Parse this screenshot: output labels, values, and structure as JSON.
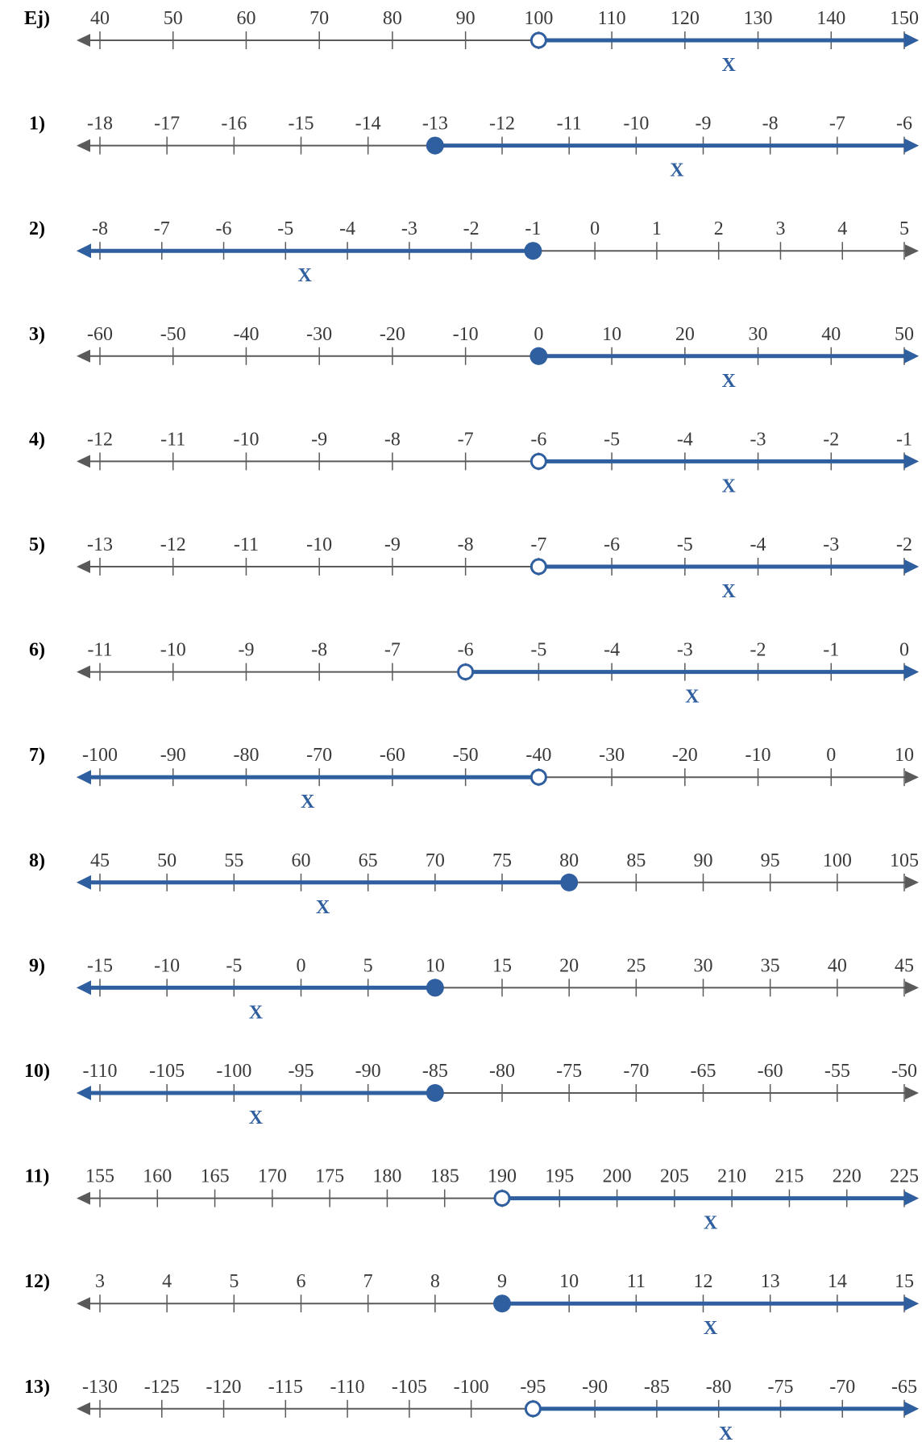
{
  "colors": {
    "axis": "#5a5a5a",
    "solution": "#2f5f9f",
    "text": "#3a3a3a"
  },
  "variable": "X",
  "problems": [
    {
      "label": "Ej)",
      "ticks": [
        "40",
        "50",
        "60",
        "70",
        "80",
        "90",
        "100",
        "110",
        "120",
        "130",
        "140",
        "150"
      ],
      "point": "100",
      "endpoint": "open",
      "direction": "right"
    },
    {
      "label": "1)",
      "ticks": [
        "-18",
        "-17",
        "-16",
        "-15",
        "-14",
        "-13",
        "-12",
        "-11",
        "-10",
        "-9",
        "-8",
        "-7",
        "-6"
      ],
      "point": "-13",
      "endpoint": "closed",
      "direction": "right"
    },
    {
      "label": "2)",
      "ticks": [
        "-8",
        "-7",
        "-6",
        "-5",
        "-4",
        "-3",
        "-2",
        "-1",
        "0",
        "1",
        "2",
        "3",
        "4",
        "5"
      ],
      "point": "-1",
      "endpoint": "closed",
      "direction": "left"
    },
    {
      "label": "3)",
      "ticks": [
        "-60",
        "-50",
        "-40",
        "-30",
        "-20",
        "-10",
        "0",
        "10",
        "20",
        "30",
        "40",
        "50"
      ],
      "point": "0",
      "endpoint": "closed",
      "direction": "right"
    },
    {
      "label": "4)",
      "ticks": [
        "-12",
        "-11",
        "-10",
        "-9",
        "-8",
        "-7",
        "-6",
        "-5",
        "-4",
        "-3",
        "-2",
        "-1"
      ],
      "point": "-6",
      "endpoint": "open",
      "direction": "right"
    },
    {
      "label": "5)",
      "ticks": [
        "-13",
        "-12",
        "-11",
        "-10",
        "-9",
        "-8",
        "-7",
        "-6",
        "-5",
        "-4",
        "-3",
        "-2"
      ],
      "point": "-7",
      "endpoint": "open",
      "direction": "right"
    },
    {
      "label": "6)",
      "ticks": [
        "-11",
        "-10",
        "-9",
        "-8",
        "-7",
        "-6",
        "-5",
        "-4",
        "-3",
        "-2",
        "-1",
        "0"
      ],
      "point": "-6",
      "endpoint": "open",
      "direction": "right"
    },
    {
      "label": "7)",
      "ticks": [
        "-100",
        "-90",
        "-80",
        "-70",
        "-60",
        "-50",
        "-40",
        "-30",
        "-20",
        "-10",
        "0",
        "10"
      ],
      "point": "-40",
      "endpoint": "open",
      "direction": "left"
    },
    {
      "label": "8)",
      "ticks": [
        "45",
        "50",
        "55",
        "60",
        "65",
        "70",
        "75",
        "80",
        "85",
        "90",
        "95",
        "100",
        "105"
      ],
      "point": "80",
      "endpoint": "closed",
      "direction": "left"
    },
    {
      "label": "9)",
      "ticks": [
        "-15",
        "-10",
        "-5",
        "0",
        "5",
        "10",
        "15",
        "20",
        "25",
        "30",
        "35",
        "40",
        "45"
      ],
      "point": "10",
      "endpoint": "closed",
      "direction": "left"
    },
    {
      "label": "10)",
      "ticks": [
        "-110",
        "-105",
        "-100",
        "-95",
        "-90",
        "-85",
        "-80",
        "-75",
        "-70",
        "-65",
        "-60",
        "-55",
        "-50"
      ],
      "point": "-85",
      "endpoint": "closed",
      "direction": "left"
    },
    {
      "label": "11)",
      "ticks": [
        "155",
        "160",
        "165",
        "170",
        "175",
        "180",
        "185",
        "190",
        "195",
        "200",
        "205",
        "210",
        "215",
        "220",
        "225"
      ],
      "point": "190",
      "endpoint": "open",
      "direction": "right"
    },
    {
      "label": "12)",
      "ticks": [
        "3",
        "4",
        "5",
        "6",
        "7",
        "8",
        "9",
        "10",
        "11",
        "12",
        "13",
        "14",
        "15"
      ],
      "point": "9",
      "endpoint": "closed",
      "direction": "right"
    },
    {
      "label": "13)",
      "ticks": [
        "-130",
        "-125",
        "-120",
        "-115",
        "-110",
        "-105",
        "-100",
        "-95",
        "-90",
        "-85",
        "-80",
        "-75",
        "-70",
        "-65"
      ],
      "point": "-95",
      "endpoint": "open",
      "direction": "right"
    }
  ]
}
